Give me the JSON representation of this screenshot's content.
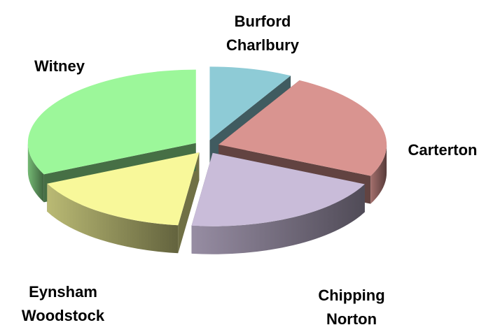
{
  "chart_data": {
    "type": "pie",
    "categories": [
      "Burford Charlbury",
      "Carterton",
      "Chipping Norton",
      "Eynsham Woodstock",
      "Witney"
    ],
    "values": [
      8,
      24,
      20,
      16,
      32
    ],
    "colors": [
      "#8ecbd6",
      "#d99490",
      "#c9bcd9",
      "#f8f89a",
      "#9cf79a"
    ]
  }
}
